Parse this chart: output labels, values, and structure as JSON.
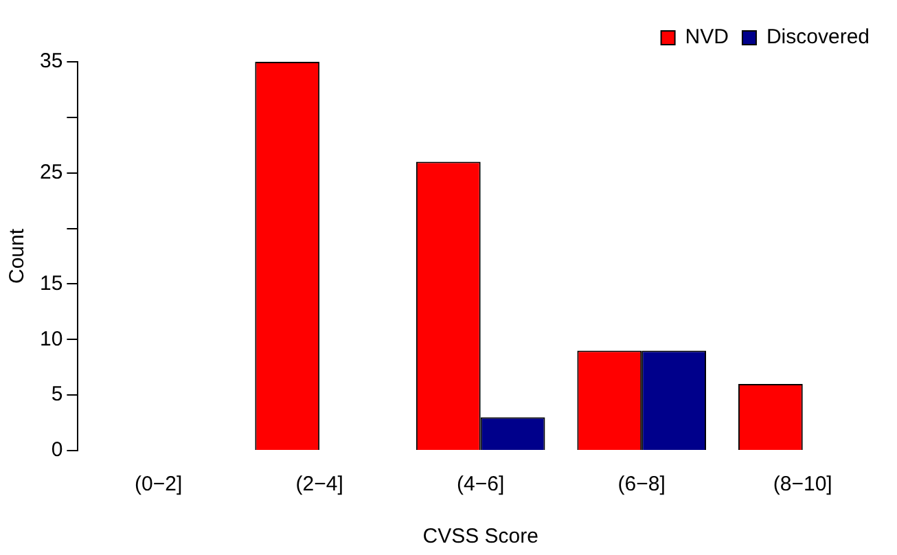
{
  "chart_data": {
    "type": "bar",
    "xlabel": "CVSS Score",
    "ylabel": "Count",
    "categories": [
      "(0−2]",
      "(2−4]",
      "(4−6]",
      "(6−8]",
      "(8−10]"
    ],
    "series": [
      {
        "name": "NVD",
        "color": "#ff0000",
        "values": [
          0,
          35,
          26,
          9,
          6
        ]
      },
      {
        "name": "Discovered",
        "color": "#00008b",
        "values": [
          0,
          0,
          3,
          9,
          0
        ]
      }
    ],
    "ylim": [
      0,
      35
    ],
    "yticks": [
      0,
      5,
      10,
      15,
      {
        "value": 20,
        "label": null
      },
      25,
      {
        "value": 30,
        "label": null
      },
      35
    ],
    "grid": false,
    "legend": "top right"
  }
}
